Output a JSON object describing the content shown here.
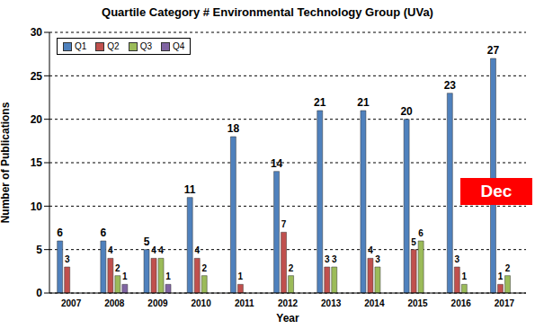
{
  "chart_data": {
    "type": "bar",
    "title": "Quartile Category # Environmental Technology Group (UVa)",
    "x_label": "Year",
    "y_label": "Number of Publications",
    "categories": [
      "2007",
      "2008",
      "2009",
      "2010",
      "2011",
      "2012",
      "2013",
      "2014",
      "2015",
      "2016",
      "2017"
    ],
    "series": [
      {
        "name": "Q1",
        "color": "#4f81bd",
        "values": [
          6,
          6,
          5,
          11,
          18,
          14,
          21,
          21,
          20,
          23,
          27
        ]
      },
      {
        "name": "Q2",
        "color": "#c0504d",
        "values": [
          3,
          4,
          4,
          4,
          1,
          7,
          3,
          4,
          5,
          3,
          1
        ]
      },
      {
        "name": "Q3",
        "color": "#9bbb59",
        "values": [
          0,
          2,
          4,
          2,
          0,
          2,
          3,
          3,
          6,
          1,
          2
        ]
      },
      {
        "name": "Q4",
        "color": "#8064a2",
        "values": [
          0,
          1,
          1,
          0,
          0,
          0,
          0,
          0,
          0,
          null,
          null
        ]
      }
    ],
    "ylim": [
      0,
      30
    ],
    "yticks": [
      0,
      5,
      10,
      15,
      20,
      25,
      30
    ],
    "grid": true,
    "legend": "top left",
    "data_labels": true,
    "annotations": [
      "Dec"
    ]
  }
}
